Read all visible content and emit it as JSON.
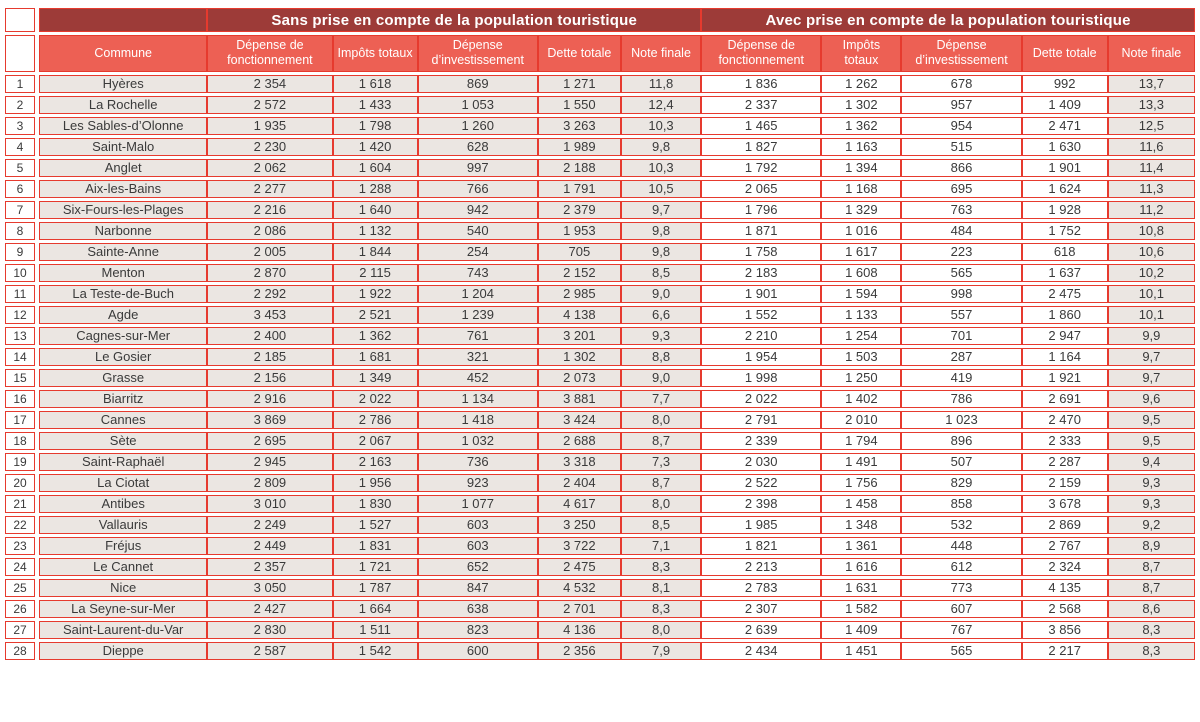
{
  "headers": {
    "group_sans": "Sans prise en compte de la population touristique",
    "group_avec": "Avec prise en compte de la population touristique",
    "columns": [
      "Commune",
      "Dépense de fonctionnement",
      "Impôts totaux",
      "Dépense d’investissement",
      "Dette totale",
      "Note finale"
    ]
  },
  "colors": {
    "maroon": "#9d3b38",
    "salmon": "#ed6054",
    "border_red": "#e63a2e",
    "beige": "#ebe6e2",
    "text": "#3a3a3a"
  },
  "chart_data": {
    "type": "table",
    "group_headers": [
      "Sans prise en compte de la population touristique",
      "Avec prise en compte de la population touristique"
    ],
    "columns_per_group": [
      "Dépense de fonctionnement",
      "Impôts totaux",
      "Dépense d’investissement",
      "Dette totale",
      "Note finale"
    ],
    "rows": [
      {
        "rank": "1",
        "commune": "Hyères",
        "sans": [
          "2 354",
          "1 618",
          "869",
          "1 271",
          "11,8"
        ],
        "avec": [
          "1 836",
          "1 262",
          "678",
          "992",
          "13,7"
        ]
      },
      {
        "rank": "2",
        "commune": "La Rochelle",
        "sans": [
          "2 572",
          "1 433",
          "1 053",
          "1 550",
          "12,4"
        ],
        "avec": [
          "2 337",
          "1 302",
          "957",
          "1 409",
          "13,3"
        ]
      },
      {
        "rank": "3",
        "commune": "Les Sables-d’Olonne",
        "sans": [
          "1 935",
          "1 798",
          "1 260",
          "3 263",
          "10,3"
        ],
        "avec": [
          "1 465",
          "1 362",
          "954",
          "2 471",
          "12,5"
        ]
      },
      {
        "rank": "4",
        "commune": "Saint-Malo",
        "sans": [
          "2 230",
          "1 420",
          "628",
          "1 989",
          "9,8"
        ],
        "avec": [
          "1 827",
          "1 163",
          "515",
          "1 630",
          "11,6"
        ]
      },
      {
        "rank": "5",
        "commune": "Anglet",
        "sans": [
          "2 062",
          "1 604",
          "997",
          "2 188",
          "10,3"
        ],
        "avec": [
          "1 792",
          "1 394",
          "866",
          "1 901",
          "11,4"
        ]
      },
      {
        "rank": "6",
        "commune": "Aix-les-Bains",
        "sans": [
          "2 277",
          "1 288",
          "766",
          "1 791",
          "10,5"
        ],
        "avec": [
          "2 065",
          "1 168",
          "695",
          "1 624",
          "11,3"
        ]
      },
      {
        "rank": "7",
        "commune": "Six-Fours-les-Plages",
        "sans": [
          "2 216",
          "1 640",
          "942",
          "2 379",
          "9,7"
        ],
        "avec": [
          "1 796",
          "1 329",
          "763",
          "1 928",
          "11,2"
        ]
      },
      {
        "rank": "8",
        "commune": "Narbonne",
        "sans": [
          "2 086",
          "1 132",
          "540",
          "1 953",
          "9,8"
        ],
        "avec": [
          "1 871",
          "1 016",
          "484",
          "1 752",
          "10,8"
        ]
      },
      {
        "rank": "9",
        "commune": "Sainte-Anne",
        "sans": [
          "2 005",
          "1 844",
          "254",
          "705",
          "9,8"
        ],
        "avec": [
          "1 758",
          "1 617",
          "223",
          "618",
          "10,6"
        ]
      },
      {
        "rank": "10",
        "commune": "Menton",
        "sans": [
          "2 870",
          "2 115",
          "743",
          "2 152",
          "8,5"
        ],
        "avec": [
          "2 183",
          "1 608",
          "565",
          "1 637",
          "10,2"
        ]
      },
      {
        "rank": "11",
        "commune": "La Teste-de-Buch",
        "sans": [
          "2 292",
          "1 922",
          "1 204",
          "2 985",
          "9,0"
        ],
        "avec": [
          "1 901",
          "1 594",
          "998",
          "2 475",
          "10,1"
        ]
      },
      {
        "rank": "12",
        "commune": "Agde",
        "sans": [
          "3 453",
          "2 521",
          "1 239",
          "4 138",
          "6,6"
        ],
        "avec": [
          "1 552",
          "1 133",
          "557",
          "1 860",
          "10,1"
        ]
      },
      {
        "rank": "13",
        "commune": "Cagnes-sur-Mer",
        "sans": [
          "2 400",
          "1 362",
          "761",
          "3 201",
          "9,3"
        ],
        "avec": [
          "2 210",
          "1 254",
          "701",
          "2 947",
          "9,9"
        ]
      },
      {
        "rank": "14",
        "commune": "Le Gosier",
        "sans": [
          "2 185",
          "1 681",
          "321",
          "1 302",
          "8,8"
        ],
        "avec": [
          "1 954",
          "1 503",
          "287",
          "1 164",
          "9,7"
        ]
      },
      {
        "rank": "15",
        "commune": "Grasse",
        "sans": [
          "2 156",
          "1 349",
          "452",
          "2 073",
          "9,0"
        ],
        "avec": [
          "1 998",
          "1 250",
          "419",
          "1 921",
          "9,7"
        ]
      },
      {
        "rank": "16",
        "commune": "Biarritz",
        "sans": [
          "2 916",
          "2 022",
          "1 134",
          "3 881",
          "7,7"
        ],
        "avec": [
          "2 022",
          "1 402",
          "786",
          "2 691",
          "9,6"
        ]
      },
      {
        "rank": "17",
        "commune": "Cannes",
        "sans": [
          "3 869",
          "2 786",
          "1 418",
          "3 424",
          "8,0"
        ],
        "avec": [
          "2 791",
          "2 010",
          "1 023",
          "2 470",
          "9,5"
        ]
      },
      {
        "rank": "18",
        "commune": "Sète",
        "sans": [
          "2 695",
          "2 067",
          "1 032",
          "2 688",
          "8,7"
        ],
        "avec": [
          "2 339",
          "1 794",
          "896",
          "2 333",
          "9,5"
        ]
      },
      {
        "rank": "19",
        "commune": "Saint-Raphaël",
        "sans": [
          "2 945",
          "2 163",
          "736",
          "3 318",
          "7,3"
        ],
        "avec": [
          "2 030",
          "1 491",
          "507",
          "2 287",
          "9,4"
        ]
      },
      {
        "rank": "20",
        "commune": "La Ciotat",
        "sans": [
          "2 809",
          "1 956",
          "923",
          "2 404",
          "8,7"
        ],
        "avec": [
          "2 522",
          "1 756",
          "829",
          "2 159",
          "9,3"
        ]
      },
      {
        "rank": "21",
        "commune": "Antibes",
        "sans": [
          "3 010",
          "1 830",
          "1 077",
          "4 617",
          "8,0"
        ],
        "avec": [
          "2 398",
          "1 458",
          "858",
          "3 678",
          "9,3"
        ]
      },
      {
        "rank": "22",
        "commune": "Vallauris",
        "sans": [
          "2 249",
          "1 527",
          "603",
          "3 250",
          "8,5"
        ],
        "avec": [
          "1 985",
          "1 348",
          "532",
          "2 869",
          "9,2"
        ]
      },
      {
        "rank": "23",
        "commune": "Fréjus",
        "sans": [
          "2 449",
          "1 831",
          "603",
          "3 722",
          "7,1"
        ],
        "avec": [
          "1 821",
          "1 361",
          "448",
          "2 767",
          "8,9"
        ]
      },
      {
        "rank": "24",
        "commune": "Le Cannet",
        "sans": [
          "2 357",
          "1 721",
          "652",
          "2 475",
          "8,3"
        ],
        "avec": [
          "2 213",
          "1 616",
          "612",
          "2 324",
          "8,7"
        ]
      },
      {
        "rank": "25",
        "commune": "Nice",
        "sans": [
          "3 050",
          "1 787",
          "847",
          "4 532",
          "8,1"
        ],
        "avec": [
          "2 783",
          "1 631",
          "773",
          "4 135",
          "8,7"
        ]
      },
      {
        "rank": "26",
        "commune": "La Seyne-sur-Mer",
        "sans": [
          "2 427",
          "1 664",
          "638",
          "2 701",
          "8,3"
        ],
        "avec": [
          "2 307",
          "1 582",
          "607",
          "2 568",
          "8,6"
        ]
      },
      {
        "rank": "27",
        "commune": "Saint-Laurent-du-Var",
        "sans": [
          "2 830",
          "1 511",
          "823",
          "4 136",
          "8,0"
        ],
        "avec": [
          "2 639",
          "1 409",
          "767",
          "3 856",
          "8,3"
        ]
      },
      {
        "rank": "28",
        "commune": "Dieppe",
        "sans": [
          "2 587",
          "1 542",
          "600",
          "2 356",
          "7,9"
        ],
        "avec": [
          "2 434",
          "1 451",
          "565",
          "2 217",
          "8,3"
        ]
      }
    ]
  }
}
